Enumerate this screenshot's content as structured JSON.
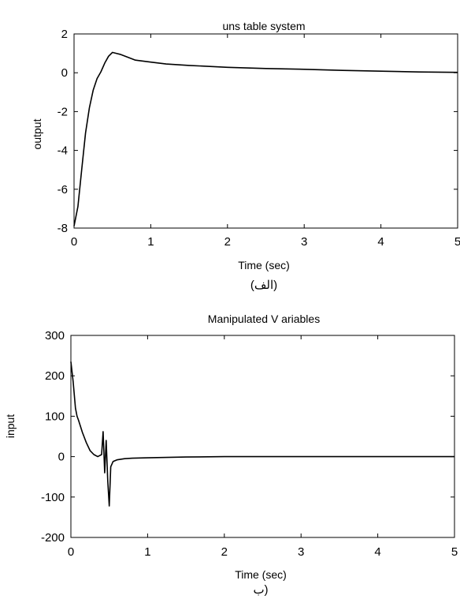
{
  "chart_data": [
    {
      "type": "line",
      "title": "uns table system",
      "xlabel": "Time (sec)",
      "ylabel": "output",
      "caption": "(الف)",
      "xlim": [
        0,
        5
      ],
      "ylim": [
        -8,
        2
      ],
      "xticks": [
        0,
        1,
        2,
        3,
        4,
        5
      ],
      "yticks": [
        -8,
        -6,
        -4,
        -2,
        0,
        2
      ],
      "xtick_labels": [
        "0",
        "1",
        "2",
        "3",
        "4",
        "5"
      ],
      "ytick_labels": [
        "-8",
        "-6",
        "-4",
        "-2",
        "0",
        "2"
      ],
      "grid": false,
      "series": [
        {
          "x": [
            0,
            0.05,
            0.1,
            0.15,
            0.2,
            0.25,
            0.3,
            0.35,
            0.4,
            0.45,
            0.5,
            0.55,
            0.6,
            0.7,
            0.8,
            1.0,
            1.2,
            1.5,
            2.0,
            2.5,
            3.0,
            3.5,
            4.0,
            4.5,
            5.0
          ],
          "y": [
            -7.9,
            -6.9,
            -5.0,
            -3.1,
            -1.8,
            -0.9,
            -0.3,
            0.05,
            0.5,
            0.85,
            1.05,
            1.0,
            0.95,
            0.8,
            0.65,
            0.55,
            0.45,
            0.38,
            0.28,
            0.22,
            0.18,
            0.12,
            0.08,
            0.04,
            0.02
          ]
        }
      ]
    },
    {
      "type": "line",
      "title": "Manipulated V ariables",
      "xlabel": "Time (sec)",
      "ylabel": "input",
      "caption": "(ب",
      "xlim": [
        0,
        5
      ],
      "ylim": [
        -200,
        300
      ],
      "xticks": [
        0,
        1,
        2,
        3,
        4,
        5
      ],
      "yticks": [
        -200,
        -100,
        0,
        100,
        200,
        300
      ],
      "xtick_labels": [
        "0",
        "1",
        "2",
        "3",
        "4",
        "5"
      ],
      "ytick_labels": [
        "-200",
        "-100",
        "0",
        "100",
        "200",
        "300"
      ],
      "grid": false,
      "series": [
        {
          "x": [
            0,
            0.03,
            0.06,
            0.08,
            0.1,
            0.15,
            0.2,
            0.25,
            0.3,
            0.35,
            0.4,
            0.42,
            0.44,
            0.46,
            0.48,
            0.5,
            0.52,
            0.55,
            0.6,
            0.7,
            0.8,
            1.0,
            1.5,
            2.0,
            3.0,
            4.0,
            5.0
          ],
          "y": [
            235,
            185,
            120,
            100,
            90,
            60,
            35,
            15,
            5,
            0,
            5,
            62,
            -40,
            40,
            -60,
            -122,
            -25,
            -12,
            -8,
            -5,
            -4,
            -3,
            -1,
            0,
            0,
            0,
            0
          ]
        }
      ]
    }
  ]
}
